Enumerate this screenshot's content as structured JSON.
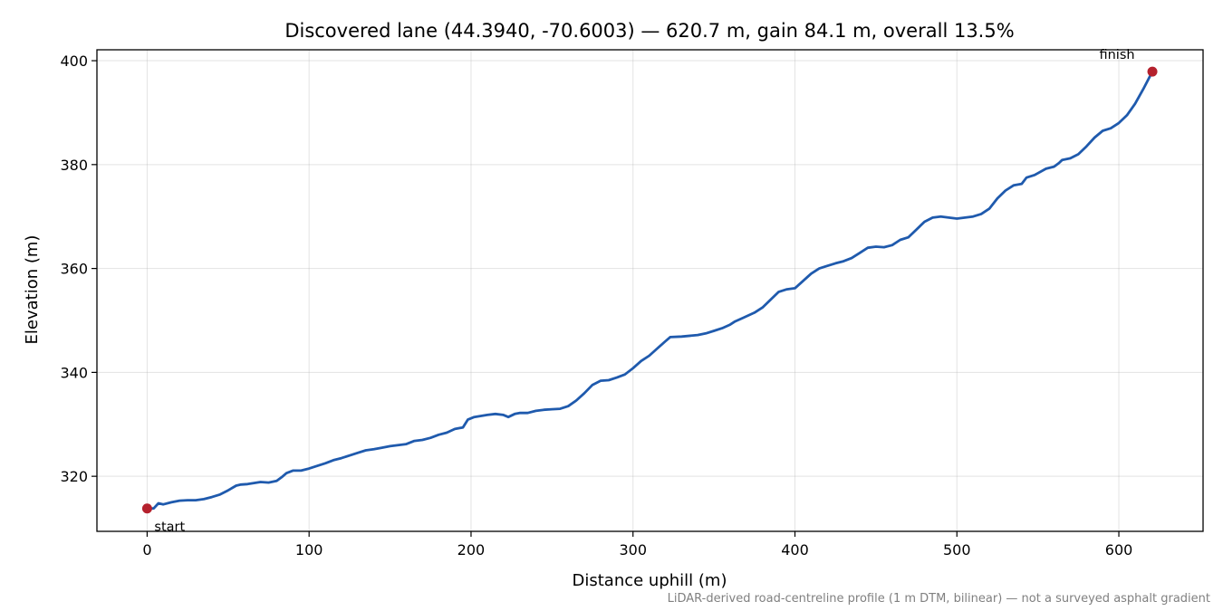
{
  "chart_data": {
    "type": "line",
    "title": "Discovered lane (44.3940, -70.6003) — 620.7 m, gain 84.1 m, overall 13.5%",
    "xlabel": "Distance uphill (m)",
    "ylabel": "Elevation (m)",
    "xlim": [
      -31,
      652
    ],
    "ylim": [
      309.4,
      402.1
    ],
    "x_ticks": [
      0,
      100,
      200,
      300,
      400,
      500,
      600
    ],
    "y_ticks": [
      320,
      340,
      360,
      380,
      400
    ],
    "grid": true,
    "line_color": "#1f5aad",
    "marker_color": "#b5212d",
    "series": [
      {
        "x": [
          0,
          4,
          7,
          10,
          15,
          20,
          25,
          30,
          35,
          40,
          45,
          50,
          55,
          58,
          62,
          70,
          75,
          80,
          83,
          86,
          90,
          95,
          100,
          105,
          110,
          115,
          120,
          125,
          130,
          135,
          140,
          145,
          150,
          160,
          165,
          170,
          175,
          180,
          185,
          190,
          195,
          198,
          202,
          210,
          215,
          220,
          223,
          227,
          230,
          235,
          240,
          245,
          250,
          255,
          260,
          265,
          270,
          275,
          280,
          285,
          290,
          295,
          300,
          305,
          310,
          315,
          320,
          323,
          330,
          340,
          345,
          350,
          355,
          360,
          363,
          368,
          375,
          380,
          385,
          390,
          395,
          400,
          405,
          410,
          415,
          420,
          425,
          430,
          435,
          440,
          445,
          450,
          455,
          460,
          465,
          470,
          475,
          480,
          485,
          490,
          495,
          500,
          505,
          510,
          515,
          520,
          525,
          530,
          535,
          540,
          543,
          548,
          555,
          560,
          563,
          565,
          570,
          575,
          580,
          585,
          590,
          595,
          600,
          605,
          610,
          615,
          620.7
        ],
        "y": [
          313.8,
          313.8,
          314.8,
          314.6,
          315.0,
          315.3,
          315.4,
          315.4,
          315.6,
          316.0,
          316.5,
          317.3,
          318.2,
          318.4,
          318.5,
          318.9,
          318.8,
          319.1,
          319.8,
          320.6,
          321.1,
          321.1,
          321.5,
          322.0,
          322.5,
          323.1,
          323.5,
          324.0,
          324.5,
          325.0,
          325.2,
          325.5,
          325.8,
          326.2,
          326.8,
          327.0,
          327.4,
          328.0,
          328.4,
          329.1,
          329.4,
          330.9,
          331.4,
          331.8,
          332.0,
          331.8,
          331.4,
          332.0,
          332.2,
          332.2,
          332.6,
          332.8,
          332.9,
          333.0,
          333.5,
          334.6,
          336.0,
          337.6,
          338.4,
          338.5,
          339.0,
          339.6,
          340.8,
          342.2,
          343.2,
          344.6,
          346.0,
          346.8,
          346.9,
          347.2,
          347.5,
          348.0,
          348.5,
          349.2,
          349.8,
          350.5,
          351.5,
          352.5,
          354.0,
          355.5,
          356.0,
          356.2,
          357.6,
          359.0,
          360.0,
          360.5,
          361.0,
          361.4,
          362.0,
          363.0,
          364.0,
          364.2,
          364.1,
          364.5,
          365.5,
          366.0,
          367.5,
          369.0,
          369.8,
          370.0,
          369.8,
          369.6,
          369.8,
          370.0,
          370.5,
          371.5,
          373.5,
          375.0,
          376.0,
          376.3,
          377.5,
          378.0,
          379.2,
          379.6,
          380.3,
          380.9,
          381.2,
          382.0,
          383.5,
          385.2,
          386.5,
          387.0,
          388.0,
          389.5,
          391.7,
          394.5,
          397.9
        ]
      }
    ],
    "annotations": [
      {
        "label": "start",
        "x": 0,
        "y": 313.8
      },
      {
        "label": "finish",
        "x": 620.7,
        "y": 397.9
      }
    ],
    "footnote": "LiDAR-derived road-centreline profile (1 m DTM, bilinear) — not a surveyed asphalt gradient"
  }
}
